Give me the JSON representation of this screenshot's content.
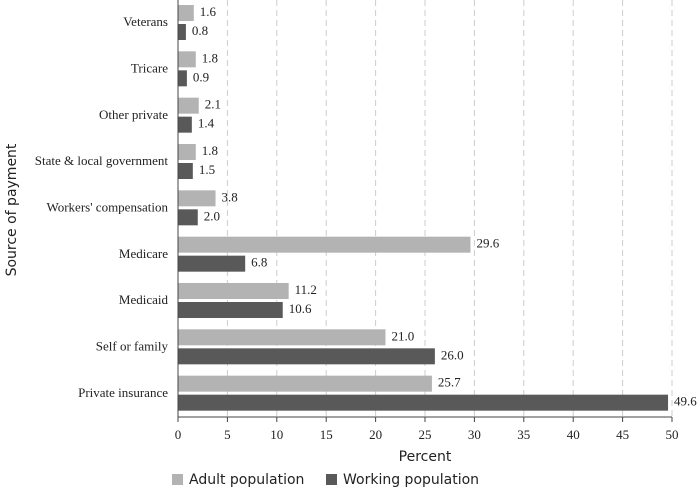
{
  "chart_data": {
    "type": "bar",
    "orientation": "horizontal",
    "y_label": "Source of payment",
    "x_label": "Percent",
    "categories": [
      "Veterans",
      "Tricare",
      "Other private",
      "State & local government",
      "Workers' compensation",
      "Medicare",
      "Medicaid",
      "Self or family",
      "Private insurance"
    ],
    "series": [
      {
        "name": "Adult population",
        "color": "#b3b3b3",
        "values": [
          1.6,
          1.8,
          2.1,
          1.8,
          3.8,
          29.6,
          11.2,
          21.0,
          25.7
        ],
        "value_labels": [
          "1.6",
          "1.8",
          "2.1",
          "1.8",
          "3.8",
          "29.6",
          "11.2",
          "21.0",
          "25.7"
        ]
      },
      {
        "name": "Working population",
        "color": "#595959",
        "values": [
          0.8,
          0.9,
          1.4,
          1.5,
          2.0,
          6.8,
          10.6,
          26.0,
          49.6
        ],
        "value_labels": [
          "0.8",
          "0.9",
          "1.4",
          "1.5",
          "2.0",
          "6.8",
          "10.6",
          "26.0",
          "49.6"
        ]
      }
    ],
    "xlim": [
      0,
      50
    ],
    "xticks": [
      0,
      5,
      10,
      15,
      20,
      25,
      30,
      35,
      40,
      45,
      50
    ],
    "grid": true,
    "legend": "bottom"
  }
}
